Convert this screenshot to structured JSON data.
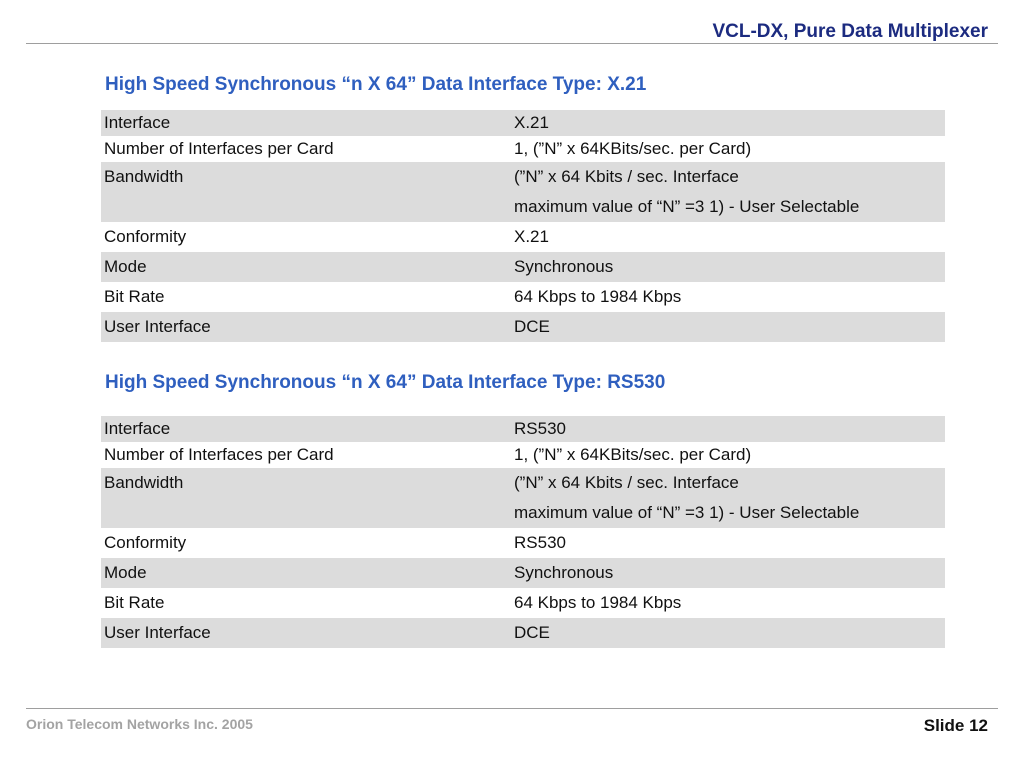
{
  "header": {
    "title": "VCL-DX, Pure Data Multiplexer"
  },
  "sections": [
    {
      "title": "High Speed Synchronous  “n X 64” Data Interface Type: X.21",
      "rows": [
        {
          "label": "Interface",
          "value": [
            "X.21"
          ]
        },
        {
          "label": "Number of Interfaces per Card",
          "value": [
            "1, (”N” x 64KBits/sec. per Card)"
          ]
        },
        {
          "label": "Bandwidth",
          "value": [
            "(”N” x 64 Kbits / sec. Interface",
            "maximum value of “N” =3 1) - User Selectable"
          ]
        },
        {
          "label": "Conformity",
          "value": [
            "X.21"
          ]
        },
        {
          "label": "Mode",
          "value": [
            "Synchronous"
          ]
        },
        {
          "label": "Bit Rate",
          "value": [
            "64 Kbps to 1984 Kbps"
          ]
        },
        {
          "label": "User Interface",
          "value": [
            "DCE"
          ]
        }
      ]
    },
    {
      "title": "High Speed Synchronous  “n X 64” Data Interface Type: RS530",
      "rows": [
        {
          "label": "Interface",
          "value": [
            "RS530"
          ]
        },
        {
          "label": "Number of Interfaces per Card",
          "value": [
            "1, (”N” x 64KBits/sec. per Card)"
          ]
        },
        {
          "label": "Bandwidth",
          "value": [
            "(”N” x 64 Kbits / sec. Interface",
            "maximum value of “N” =3 1) - User Selectable"
          ]
        },
        {
          "label": "Conformity",
          "value": [
            "RS530"
          ]
        },
        {
          "label": "Mode",
          "value": [
            "Synchronous"
          ]
        },
        {
          "label": "Bit Rate",
          "value": [
            "64 Kbps to 1984 Kbps"
          ]
        },
        {
          "label": "User Interface",
          "value": [
            "DCE"
          ]
        }
      ]
    }
  ],
  "footer": {
    "company": "Orion Telecom Networks Inc. 2005",
    "slide": "Slide 12"
  }
}
